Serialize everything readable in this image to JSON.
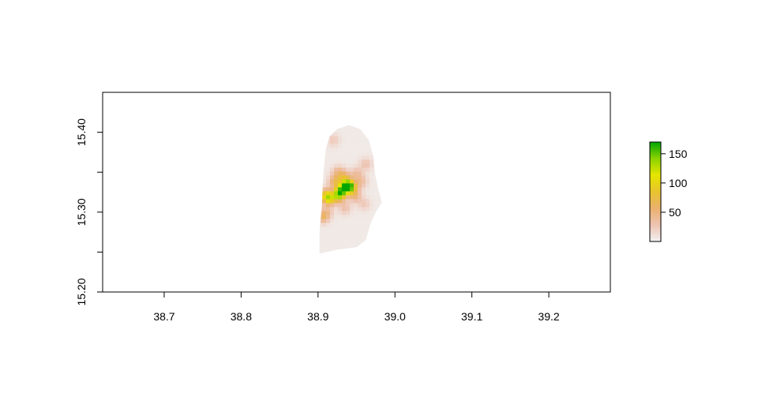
{
  "chart_data": {
    "type": "heatmap",
    "title": "",
    "xlabel": "",
    "ylabel": "",
    "xlim": [
      38.62,
      39.28
    ],
    "ylim": [
      15.2,
      15.45
    ],
    "x_ticks": [
      {
        "value": 38.7,
        "label": "38.7"
      },
      {
        "value": 38.8,
        "label": "38.8"
      },
      {
        "value": 38.9,
        "label": "38.9"
      },
      {
        "value": 39.0,
        "label": "39.0"
      },
      {
        "value": 39.1,
        "label": "39.1"
      },
      {
        "value": 39.2,
        "label": "39.2"
      }
    ],
    "y_ticks": [
      {
        "value": 15.2,
        "label": "15.20"
      },
      {
        "value": 15.25,
        "label": ""
      },
      {
        "value": 15.3,
        "label": "15.30"
      },
      {
        "value": 15.35,
        "label": ""
      },
      {
        "value": 15.4,
        "label": "15.40"
      }
    ],
    "region_outline": [
      [
        38.902,
        15.248
      ],
      [
        38.902,
        15.275
      ],
      [
        38.905,
        15.31
      ],
      [
        38.907,
        15.35
      ],
      [
        38.91,
        15.378
      ],
      [
        38.915,
        15.395
      ],
      [
        38.925,
        15.404
      ],
      [
        38.94,
        15.409
      ],
      [
        38.955,
        15.404
      ],
      [
        38.966,
        15.39
      ],
      [
        38.972,
        15.37
      ],
      [
        38.974,
        15.348
      ],
      [
        38.978,
        15.33
      ],
      [
        38.983,
        15.312
      ],
      [
        38.975,
        15.3
      ],
      [
        38.968,
        15.285
      ],
      [
        38.962,
        15.265
      ],
      [
        38.95,
        15.256
      ],
      [
        38.925,
        15.253
      ],
      [
        38.902,
        15.248
      ]
    ],
    "base_value": 5,
    "hotspots": [
      {
        "x": 38.938,
        "y": 15.333,
        "value": 160
      },
      {
        "x": 38.93,
        "y": 15.326,
        "value": 115
      },
      {
        "x": 38.926,
        "y": 15.32,
        "value": 95
      },
      {
        "x": 38.914,
        "y": 15.316,
        "value": 90
      },
      {
        "x": 38.91,
        "y": 15.322,
        "value": 75
      },
      {
        "x": 38.944,
        "y": 15.33,
        "value": 70
      },
      {
        "x": 38.922,
        "y": 15.338,
        "value": 60
      },
      {
        "x": 38.934,
        "y": 15.344,
        "value": 55
      },
      {
        "x": 38.948,
        "y": 15.32,
        "value": 45
      },
      {
        "x": 38.906,
        "y": 15.294,
        "value": 55
      },
      {
        "x": 38.926,
        "y": 15.35,
        "value": 40
      },
      {
        "x": 38.956,
        "y": 15.338,
        "value": 35
      },
      {
        "x": 38.962,
        "y": 15.36,
        "value": 30
      },
      {
        "x": 38.92,
        "y": 15.39,
        "value": 25
      },
      {
        "x": 38.935,
        "y": 15.305,
        "value": 32
      },
      {
        "x": 38.96,
        "y": 15.31,
        "value": 25
      },
      {
        "x": 38.912,
        "y": 15.3,
        "value": 30
      },
      {
        "x": 38.95,
        "y": 15.348,
        "value": 35
      }
    ],
    "legend": {
      "position": "right",
      "min": 0,
      "max": 170,
      "ticks": [
        {
          "value": 50,
          "label": "50"
        },
        {
          "value": 100,
          "label": "100"
        },
        {
          "value": 150,
          "label": "150"
        }
      ],
      "colors": [
        "#f2f2f2",
        "#eec3b1",
        "#ebb16e",
        "#e8c32e",
        "#e6e600",
        "#8cd300",
        "#00a600"
      ]
    }
  }
}
